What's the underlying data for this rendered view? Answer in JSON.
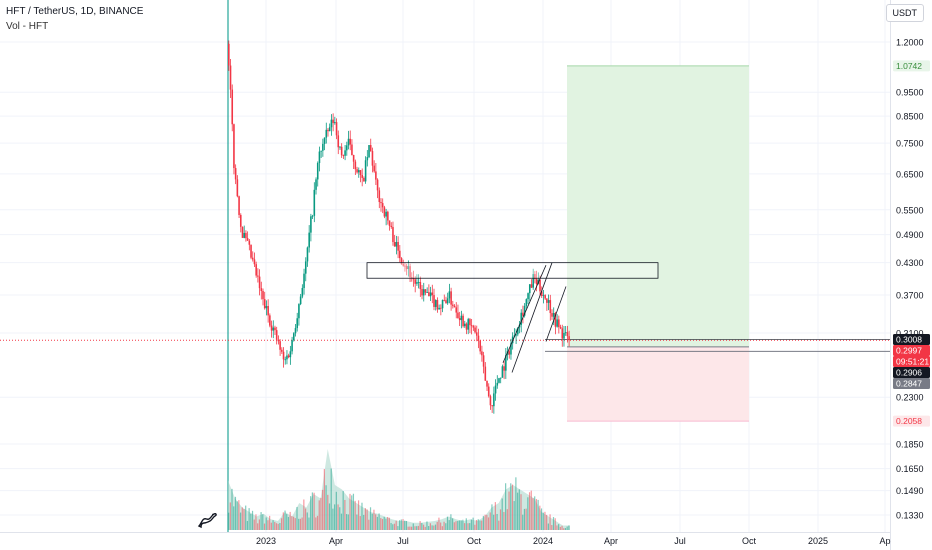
{
  "header": {
    "title": "HFT / TetherUS, 1D, BINANCE",
    "volume_label": "Vol - HFT"
  },
  "currency_button": "USDT",
  "chart_data": {
    "type": "candlestick",
    "scale": "log",
    "y_ticks": [
      "1.2000",
      "0.9500",
      "0.8500",
      "0.7500",
      "0.6500",
      "0.5500",
      "0.4900",
      "0.4300",
      "0.3700",
      "0.3100",
      "0.2300",
      "0.1850",
      "0.1650",
      "0.1490",
      "0.1330"
    ],
    "x_ticks": [
      "2023",
      "Apr",
      "Jul",
      "Oct",
      "2024",
      "Apr",
      "Jul",
      "Oct",
      "2025",
      "Ap"
    ],
    "price_labels": [
      {
        "text": "1.0742",
        "bg": "#e8f5e9",
        "fg": "#388e3c",
        "value": 1.0742
      },
      {
        "text": "0.3008",
        "bg": "#131722",
        "fg": "#ffffff",
        "value": 0.3008
      },
      {
        "text": "0.2997",
        "bg": "#f23645",
        "fg": "#ffffff",
        "value": 0.2997
      },
      {
        "text": "09:51:21",
        "bg": "#f23645",
        "fg": "#ffffff",
        "value": 0.291
      },
      {
        "text": "0.2906",
        "bg": "#131722",
        "fg": "#ffffff",
        "value": 0.2906
      },
      {
        "text": "0.2847",
        "bg": "#787b86",
        "fg": "#ffffff",
        "value": 0.2847
      },
      {
        "text": "0.2058",
        "bg": "#fde7e9",
        "fg": "#f23645",
        "value": 0.2058
      }
    ],
    "position_tool": {
      "entry": 0.2906,
      "target": 1.0742,
      "stop": 0.2058
    },
    "resistance_zone": [
      0.4,
      0.43
    ],
    "price_path": [
      [
        0,
        1.19
      ],
      [
        1,
        0.66
      ],
      [
        2,
        0.5
      ],
      [
        3,
        0.46
      ],
      [
        5,
        0.36
      ],
      [
        7,
        0.3
      ],
      [
        8,
        0.27
      ],
      [
        9,
        0.29
      ],
      [
        10,
        0.35
      ],
      [
        11,
        0.42
      ],
      [
        12,
        0.55
      ],
      [
        13,
        0.72
      ],
      [
        14,
        0.78
      ],
      [
        15,
        0.84
      ],
      [
        16,
        0.7
      ],
      [
        17,
        0.75
      ],
      [
        18,
        0.68
      ],
      [
        19,
        0.62
      ],
      [
        20,
        0.74
      ],
      [
        21,
        0.6
      ],
      [
        22,
        0.55
      ],
      [
        23,
        0.5
      ],
      [
        24,
        0.45
      ],
      [
        25,
        0.43
      ],
      [
        26,
        0.4
      ],
      [
        27,
        0.38
      ],
      [
        28,
        0.37
      ],
      [
        29,
        0.36
      ],
      [
        30,
        0.35
      ],
      [
        31,
        0.37
      ],
      [
        32,
        0.35
      ],
      [
        33,
        0.33
      ],
      [
        34,
        0.32
      ],
      [
        35,
        0.31
      ],
      [
        36,
        0.26
      ],
      [
        37,
        0.22
      ],
      [
        38,
        0.25
      ],
      [
        39,
        0.27
      ],
      [
        40,
        0.3
      ],
      [
        41,
        0.33
      ],
      [
        42,
        0.36
      ],
      [
        43,
        0.4
      ],
      [
        44,
        0.38
      ],
      [
        45,
        0.36
      ],
      [
        46,
        0.33
      ],
      [
        47,
        0.31
      ],
      [
        48,
        0.2997
      ]
    ],
    "volume_path": [
      [
        0,
        0.55
      ],
      [
        1,
        0.35
      ],
      [
        2,
        0.25
      ],
      [
        3,
        0.2
      ],
      [
        4,
        0.15
      ],
      [
        5,
        0.18
      ],
      [
        6,
        0.12
      ],
      [
        7,
        0.1
      ],
      [
        8,
        0.2
      ],
      [
        9,
        0.15
      ],
      [
        10,
        0.3
      ],
      [
        11,
        0.25
      ],
      [
        12,
        0.4
      ],
      [
        13,
        0.35
      ],
      [
        14,
        0.9
      ],
      [
        15,
        0.5
      ],
      [
        16,
        0.45
      ],
      [
        17,
        0.35
      ],
      [
        18,
        0.3
      ],
      [
        19,
        0.25
      ],
      [
        20,
        0.2
      ],
      [
        21,
        0.18
      ],
      [
        22,
        0.15
      ],
      [
        23,
        0.12
      ],
      [
        24,
        0.1
      ],
      [
        25,
        0.1
      ],
      [
        26,
        0.08
      ],
      [
        27,
        0.08
      ],
      [
        28,
        0.09
      ],
      [
        29,
        0.1
      ],
      [
        30,
        0.12
      ],
      [
        31,
        0.15
      ],
      [
        32,
        0.12
      ],
      [
        33,
        0.1
      ],
      [
        34,
        0.12
      ],
      [
        35,
        0.1
      ],
      [
        36,
        0.15
      ],
      [
        37,
        0.25
      ],
      [
        38,
        0.3
      ],
      [
        39,
        0.45
      ],
      [
        40,
        0.5
      ],
      [
        41,
        0.45
      ],
      [
        42,
        0.4
      ],
      [
        43,
        0.35
      ],
      [
        44,
        0.2
      ],
      [
        45,
        0.15
      ],
      [
        46,
        0.1
      ],
      [
        47,
        0.05
      ],
      [
        48,
        0.05
      ]
    ],
    "colors": {
      "up": "#089981",
      "down": "#f23645",
      "grid": "#f0f3fa",
      "target_zone": "#e1f3e1",
      "stop_zone": "#fde7e9",
      "volume_area": "#a5d6c9"
    }
  }
}
